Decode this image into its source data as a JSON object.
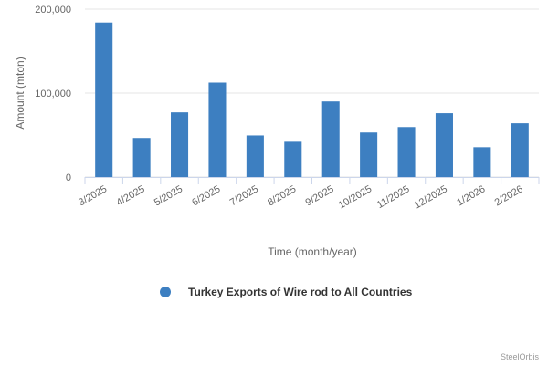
{
  "chart_data": {
    "type": "bar",
    "categories": [
      "3/2025",
      "4/2025",
      "5/2025",
      "6/2025",
      "7/2025",
      "8/2025",
      "9/2025",
      "10/2025",
      "11/2025",
      "12/2025",
      "1/2026",
      "2/2026"
    ],
    "series": [
      {
        "name": "Turkey Exports of Wire rod to All Countries",
        "values": [
          184000,
          46500,
          77000,
          112500,
          49500,
          42000,
          90000,
          53000,
          59500,
          76000,
          35500,
          64000
        ],
        "color": "#3d7fc1"
      }
    ],
    "xlabel": "Time (month/year)",
    "ylabel": "Amount (mton)",
    "ylim": [
      0,
      200000
    ],
    "yticks": [
      0,
      100000,
      200000
    ],
    "ytick_labels": [
      "0",
      "100,000",
      "200,000"
    ],
    "grid": true,
    "legend": "bottom-center"
  },
  "credit": "SteelOrbis"
}
